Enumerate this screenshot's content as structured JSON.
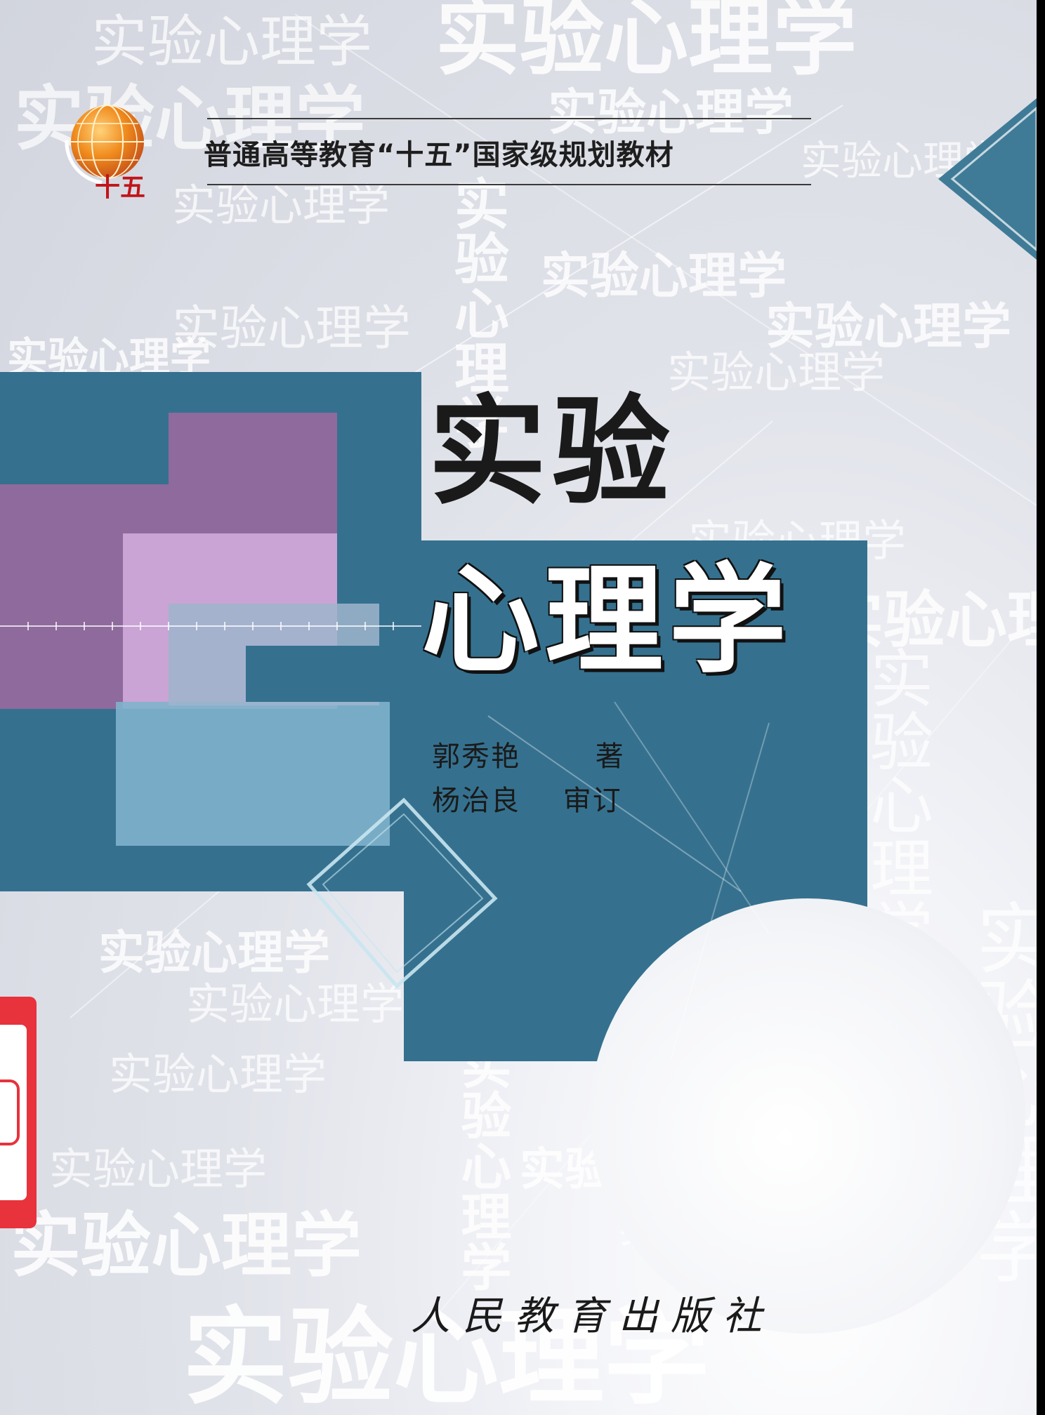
{
  "series": "普通高等教育“十五”国家级规划教材",
  "logo": {
    "label": "十五",
    "colors": {
      "globe": "#e8761a",
      "text": "#c0151a"
    }
  },
  "title": {
    "line1": "实验",
    "line2": "心理学"
  },
  "authors": [
    {
      "name": "郭秀艳",
      "role": "著"
    },
    {
      "name": "杨治良",
      "role": "审订"
    }
  ],
  "publisher": "人民教育出版社",
  "watermark_text": "实验心理学",
  "watermark_chars": [
    "实",
    "验",
    "心",
    "理",
    "学"
  ],
  "colors": {
    "teal_block": "#35718f",
    "light_teal": "#7fb3cc",
    "purple": "#8f6a9c",
    "lavender": "#c9a4d5",
    "label_red": "#e8323c",
    "background": "#d8dbe3"
  }
}
